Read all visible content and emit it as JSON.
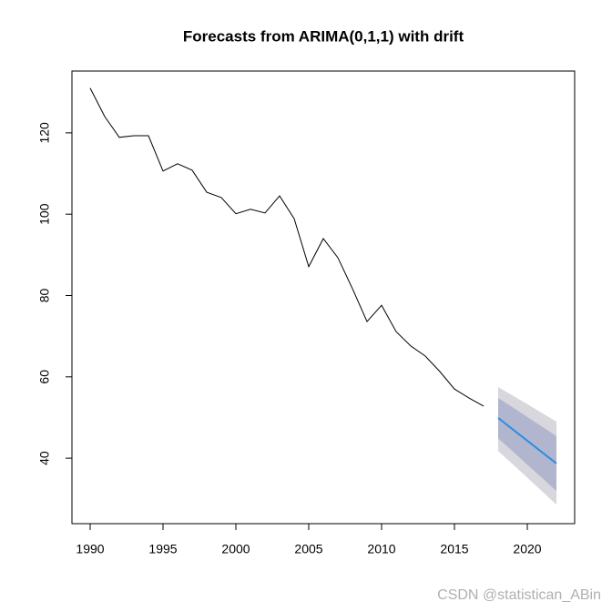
{
  "chart_data": {
    "type": "line",
    "title": "Forecasts from ARIMA(0,1,1) with drift",
    "x": [
      1990,
      1991,
      1992,
      1993,
      1994,
      1995,
      1996,
      1997,
      1998,
      1999,
      2000,
      2001,
      2002,
      2003,
      2004,
      2005,
      2006,
      2007,
      2008,
      2009,
      2010,
      2011,
      2012,
      2013,
      2014,
      2015,
      2016,
      2017
    ],
    "values": [
      131.0,
      124.0,
      118.9,
      119.3,
      119.3,
      110.6,
      112.4,
      110.8,
      105.4,
      104.1,
      100.1,
      101.2,
      100.3,
      104.5,
      98.9,
      87.1,
      94.0,
      89.3,
      81.7,
      73.6,
      77.6,
      71.1,
      67.6,
      65.1,
      61.3,
      57.0,
      54.8,
      52.8
    ],
    "color": "#000000",
    "forecast": {
      "x": [
        2018,
        2019,
        2020,
        2021,
        2022
      ],
      "values": [
        49.9,
        47.1,
        44.3,
        41.5,
        38.7
      ],
      "color": "#2b8ee6",
      "lo80": [
        44.9,
        41.7,
        38.4,
        35.2,
        31.9
      ],
      "hi80": [
        54.8,
        52.5,
        50.1,
        47.8,
        45.4
      ],
      "band80_color": "#b1b5ce",
      "lo95": [
        41.8,
        38.5,
        35.2,
        31.9,
        28.6
      ],
      "hi95": [
        57.5,
        55.4,
        53.3,
        51.1,
        49.0
      ],
      "band95_color": "#d7d7dd"
    },
    "xlim": [
      1988.75,
      2023.25
    ],
    "ylim": [
      23.9,
      135.2
    ],
    "xticks": [
      1990,
      1995,
      2000,
      2005,
      2010,
      2015,
      2020
    ],
    "yticks": [
      40,
      60,
      80,
      100,
      120
    ],
    "grid": false
  },
  "watermark": "CSDN @statistican_ABin"
}
